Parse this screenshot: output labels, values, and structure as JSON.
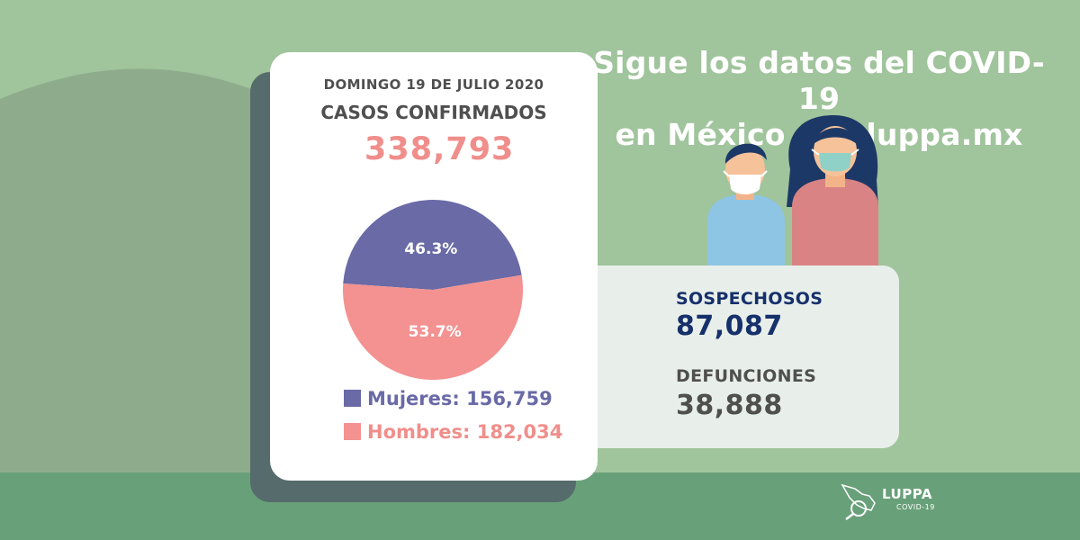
{
  "headline": {
    "line1": "Sigue los datos del COVID-19",
    "line2": "en México con luppa.mx"
  },
  "card": {
    "date": "DOMINGO 19 DE JULIO 2020",
    "cases_label": "CASOS CONFIRMADOS",
    "cases_value": "338,793"
  },
  "chart_data": {
    "type": "pie",
    "slices": [
      {
        "name": "Mujeres",
        "value": 156759,
        "percent": 46.3,
        "label": "46.3%",
        "color": "#696aa6"
      },
      {
        "name": "Hombres",
        "value": 182034,
        "percent": 53.7,
        "label": "53.7%",
        "color": "#f39291"
      }
    ],
    "legend": [
      {
        "label": "Mujeres: 156,759",
        "color": "#696aa6"
      },
      {
        "label": "Hombres: 182,034",
        "color": "#f39291"
      }
    ],
    "legend_position": "bottom"
  },
  "side": {
    "sospechosos_label": "SOSPECHOSOS",
    "sospechosos_value": "87,087",
    "defunciones_label": "DEFUNCIONES",
    "defunciones_value": "38,888"
  },
  "logo": {
    "name": "LUPPA",
    "sub": "COVID-19"
  },
  "colors": {
    "background": "#a0c49c",
    "accent_pink": "#f08e8b",
    "accent_purple": "#696aa6",
    "navy": "#16306b"
  }
}
